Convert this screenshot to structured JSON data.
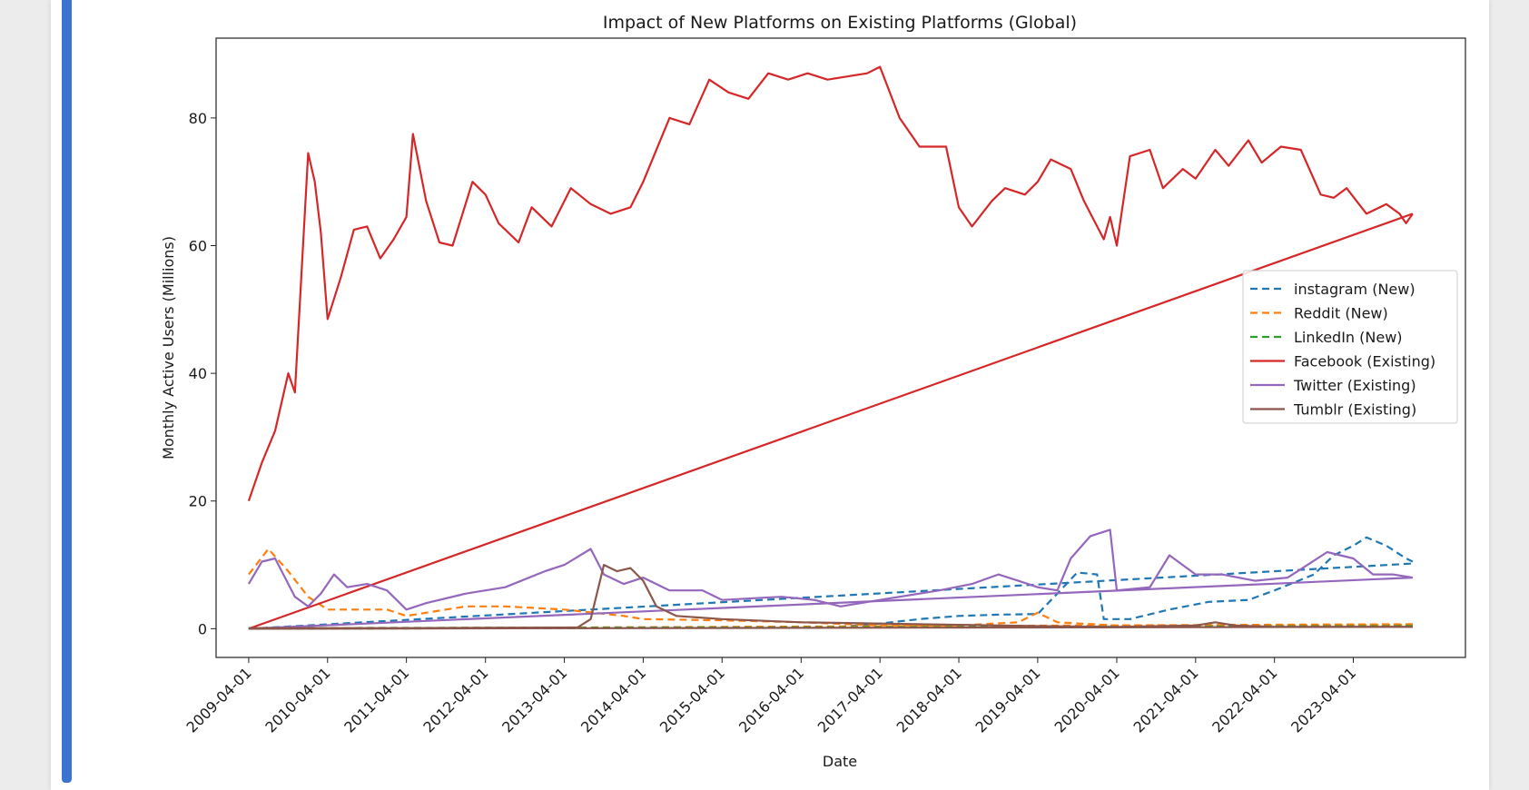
{
  "chart_data": {
    "type": "line",
    "title": "Impact of New Platforms on Existing Platforms (Global)",
    "xlabel": "Date",
    "ylabel": "Monthly Active Users (Millions)",
    "xlim": [
      "2008-11-01",
      "2024-09-01"
    ],
    "ylim": [
      -4.5,
      92.5
    ],
    "yticks": [
      0,
      20,
      40,
      60,
      80
    ],
    "xticks": [
      "2009-04-01",
      "2010-04-01",
      "2011-04-01",
      "2012-04-01",
      "2013-04-01",
      "2014-04-01",
      "2015-04-01",
      "2016-04-01",
      "2017-04-01",
      "2018-04-01",
      "2019-04-01",
      "2020-04-01",
      "2021-04-01",
      "2022-04-01",
      "2023-04-01"
    ],
    "grid": false,
    "legend_position": "center-right",
    "series": [
      {
        "name": "instagram (New)",
        "color": "#1f77b4",
        "dash": "dashed",
        "data": [
          [
            "2009-04-01",
            0.1
          ],
          [
            "2011-04-01",
            0.1
          ],
          [
            "2013-04-01",
            0.1
          ],
          [
            "2015-04-01",
            0.2
          ],
          [
            "2016-10-01",
            0.3
          ],
          [
            "2017-04-01",
            0.8
          ],
          [
            "2017-10-01",
            1.5
          ],
          [
            "2018-04-01",
            2.0
          ],
          [
            "2018-10-01",
            2.2
          ],
          [
            "2019-04-01",
            2.3
          ],
          [
            "2019-07-01",
            5.5
          ],
          [
            "2019-10-01",
            8.8
          ],
          [
            "2020-01-01",
            8.5
          ],
          [
            "2020-02-01",
            1.5
          ],
          [
            "2020-06-01",
            1.5
          ],
          [
            "2020-12-01",
            3.0
          ],
          [
            "2021-06-01",
            4.2
          ],
          [
            "2021-12-01",
            4.5
          ],
          [
            "2022-04-01",
            6.0
          ],
          [
            "2022-10-01",
            8.5
          ],
          [
            "2023-01-01",
            11.5
          ],
          [
            "2023-04-01",
            13.0
          ],
          [
            "2023-06-01",
            14.3
          ],
          [
            "2023-09-01",
            13.0
          ],
          [
            "2023-12-01",
            11.0
          ],
          [
            "2024-01-01",
            10.5
          ]
        ],
        "trend": [
          [
            "2009-04-01",
            0.0
          ],
          [
            "2024-01-01",
            10.2
          ]
        ]
      },
      {
        "name": "Reddit (New)",
        "color": "#ff7f0e",
        "dash": "dashed",
        "data": [
          [
            "2009-04-01",
            8.5
          ],
          [
            "2009-07-01",
            12.5
          ],
          [
            "2009-10-01",
            9.0
          ],
          [
            "2010-01-01",
            5.0
          ],
          [
            "2010-04-01",
            3.0
          ],
          [
            "2011-01-01",
            3.0
          ],
          [
            "2011-04-01",
            2.0
          ],
          [
            "2012-01-01",
            3.5
          ],
          [
            "2012-07-01",
            3.5
          ],
          [
            "2013-04-01",
            3.0
          ],
          [
            "2014-01-01",
            2.0
          ],
          [
            "2014-04-01",
            1.5
          ],
          [
            "2015-04-01",
            1.3
          ],
          [
            "2016-04-01",
            1.0
          ],
          [
            "2017-04-01",
            0.5
          ],
          [
            "2018-04-01",
            0.5
          ],
          [
            "2019-01-01",
            1.0
          ],
          [
            "2019-04-01",
            2.5
          ],
          [
            "2019-07-01",
            1.0
          ],
          [
            "2020-04-01",
            0.5
          ],
          [
            "2022-04-01",
            0.5
          ],
          [
            "2024-01-01",
            0.6
          ]
        ],
        "trend": [
          [
            "2009-04-01",
            0.0
          ],
          [
            "2024-01-01",
            0.7
          ]
        ]
      },
      {
        "name": "LinkedIn (New)",
        "color": "#2ca02c",
        "dash": "dashed",
        "data": [
          [
            "2009-04-01",
            0.1
          ],
          [
            "2015-04-01",
            0.2
          ],
          [
            "2020-04-01",
            0.3
          ],
          [
            "2024-01-01",
            0.4
          ]
        ],
        "trend": [
          [
            "2009-04-01",
            0.0
          ],
          [
            "2024-01-01",
            0.4
          ]
        ]
      },
      {
        "name": "Facebook (Existing)",
        "color": "#d62728",
        "dash": "solid",
        "data": [
          [
            "2009-04-01",
            20.0
          ],
          [
            "2009-06-01",
            26.0
          ],
          [
            "2009-08-01",
            31.0
          ],
          [
            "2009-10-01",
            40.0
          ],
          [
            "2009-11-01",
            37.0
          ],
          [
            "2010-01-01",
            74.5
          ],
          [
            "2010-02-01",
            70.0
          ],
          [
            "2010-03-01",
            62.0
          ],
          [
            "2010-04-01",
            48.5
          ],
          [
            "2010-06-01",
            55.0
          ],
          [
            "2010-08-01",
            62.5
          ],
          [
            "2010-10-01",
            63.0
          ],
          [
            "2010-12-01",
            58.0
          ],
          [
            "2011-02-01",
            61.0
          ],
          [
            "2011-04-01",
            64.5
          ],
          [
            "2011-05-01",
            77.5
          ],
          [
            "2011-07-01",
            67.0
          ],
          [
            "2011-09-01",
            60.5
          ],
          [
            "2011-11-01",
            60.0
          ],
          [
            "2012-02-01",
            70.0
          ],
          [
            "2012-04-01",
            68.0
          ],
          [
            "2012-06-01",
            63.5
          ],
          [
            "2012-09-01",
            60.5
          ],
          [
            "2012-11-01",
            66.0
          ],
          [
            "2013-02-01",
            63.0
          ],
          [
            "2013-05-01",
            69.0
          ],
          [
            "2013-08-01",
            66.5
          ],
          [
            "2013-11-01",
            65.0
          ],
          [
            "2014-02-01",
            66.0
          ],
          [
            "2014-04-01",
            70.0
          ],
          [
            "2014-08-01",
            80.0
          ],
          [
            "2014-11-01",
            79.0
          ],
          [
            "2015-02-01",
            86.0
          ],
          [
            "2015-05-01",
            84.0
          ],
          [
            "2015-08-01",
            83.0
          ],
          [
            "2015-11-01",
            87.0
          ],
          [
            "2016-02-01",
            86.0
          ],
          [
            "2016-05-01",
            87.0
          ],
          [
            "2016-08-01",
            86.0
          ],
          [
            "2016-11-01",
            86.5
          ],
          [
            "2017-02-01",
            87.0
          ],
          [
            "2017-04-01",
            88.0
          ],
          [
            "2017-07-01",
            80.0
          ],
          [
            "2017-10-01",
            75.5
          ],
          [
            "2018-02-01",
            75.5
          ],
          [
            "2018-04-01",
            66.0
          ],
          [
            "2018-06-01",
            63.0
          ],
          [
            "2018-09-01",
            67.0
          ],
          [
            "2018-11-01",
            69.0
          ],
          [
            "2019-02-01",
            68.0
          ],
          [
            "2019-04-01",
            70.0
          ],
          [
            "2019-06-01",
            73.5
          ],
          [
            "2019-09-01",
            72.0
          ],
          [
            "2019-11-01",
            67.0
          ],
          [
            "2020-02-01",
            61.0
          ],
          [
            "2020-03-01",
            64.5
          ],
          [
            "2020-04-01",
            60.0
          ],
          [
            "2020-06-01",
            74.0
          ],
          [
            "2020-09-01",
            75.0
          ],
          [
            "2020-11-01",
            69.0
          ],
          [
            "2021-02-01",
            72.0
          ],
          [
            "2021-04-01",
            70.5
          ],
          [
            "2021-07-01",
            75.0
          ],
          [
            "2021-09-01",
            72.5
          ],
          [
            "2021-12-01",
            76.5
          ],
          [
            "2022-02-01",
            73.0
          ],
          [
            "2022-05-01",
            75.5
          ],
          [
            "2022-08-01",
            75.0
          ],
          [
            "2022-11-01",
            68.0
          ],
          [
            "2023-01-01",
            67.5
          ],
          [
            "2023-03-01",
            69.0
          ],
          [
            "2023-06-01",
            65.0
          ],
          [
            "2023-09-01",
            66.5
          ],
          [
            "2023-11-01",
            65.0
          ],
          [
            "2023-12-01",
            63.5
          ],
          [
            "2024-01-01",
            65.0
          ]
        ],
        "trend": [
          [
            "2009-04-01",
            0.0
          ],
          [
            "2024-01-01",
            65.0
          ]
        ]
      },
      {
        "name": "Twitter (Existing)",
        "color": "#9467bd",
        "dash": "solid",
        "data": [
          [
            "2009-04-01",
            7.0
          ],
          [
            "2009-06-01",
            10.5
          ],
          [
            "2009-08-01",
            11.0
          ],
          [
            "2009-11-01",
            5.0
          ],
          [
            "2010-01-01",
            3.5
          ],
          [
            "2010-03-01",
            5.5
          ],
          [
            "2010-05-01",
            8.5
          ],
          [
            "2010-07-01",
            6.5
          ],
          [
            "2010-10-01",
            7.0
          ],
          [
            "2011-01-01",
            6.0
          ],
          [
            "2011-04-01",
            3.0
          ],
          [
            "2011-07-01",
            4.0
          ],
          [
            "2012-01-01",
            5.5
          ],
          [
            "2012-07-01",
            6.5
          ],
          [
            "2013-01-01",
            9.0
          ],
          [
            "2013-04-01",
            10.0
          ],
          [
            "2013-08-01",
            12.5
          ],
          [
            "2013-10-01",
            8.5
          ],
          [
            "2014-01-01",
            7.0
          ],
          [
            "2014-04-01",
            8.0
          ],
          [
            "2014-08-01",
            6.0
          ],
          [
            "2015-01-01",
            6.0
          ],
          [
            "2015-04-01",
            4.5
          ],
          [
            "2016-01-01",
            5.0
          ],
          [
            "2016-06-01",
            4.5
          ],
          [
            "2016-10-01",
            3.5
          ],
          [
            "2017-04-01",
            4.5
          ],
          [
            "2018-01-01",
            6.0
          ],
          [
            "2018-06-01",
            7.0
          ],
          [
            "2018-10-01",
            8.5
          ],
          [
            "2019-01-01",
            7.5
          ],
          [
            "2019-04-01",
            6.5
          ],
          [
            "2019-07-01",
            6.0
          ],
          [
            "2019-09-01",
            11.0
          ],
          [
            "2019-12-01",
            14.5
          ],
          [
            "2020-03-01",
            15.5
          ],
          [
            "2020-04-01",
            6.0
          ],
          [
            "2020-09-01",
            6.5
          ],
          [
            "2020-12-01",
            11.5
          ],
          [
            "2021-04-01",
            8.5
          ],
          [
            "2021-08-01",
            8.5
          ],
          [
            "2022-01-01",
            7.5
          ],
          [
            "2022-06-01",
            8.0
          ],
          [
            "2022-09-01",
            10.0
          ],
          [
            "2022-12-01",
            12.0
          ],
          [
            "2023-04-01",
            11.0
          ],
          [
            "2023-07-01",
            8.5
          ],
          [
            "2023-10-01",
            8.5
          ],
          [
            "2024-01-01",
            8.0
          ]
        ],
        "trend": [
          [
            "2009-04-01",
            0.0
          ],
          [
            "2024-01-01",
            8.0
          ]
        ]
      },
      {
        "name": "Tumblr (Existing)",
        "color": "#8c564b",
        "dash": "solid",
        "data": [
          [
            "2009-04-01",
            0.1
          ],
          [
            "2011-04-01",
            0.1
          ],
          [
            "2013-06-01",
            0.2
          ],
          [
            "2013-08-01",
            1.5
          ],
          [
            "2013-10-01",
            10.0
          ],
          [
            "2013-12-01",
            9.0
          ],
          [
            "2014-02-01",
            9.5
          ],
          [
            "2014-04-01",
            7.5
          ],
          [
            "2014-06-01",
            3.5
          ],
          [
            "2014-09-01",
            2.0
          ],
          [
            "2015-04-01",
            1.5
          ],
          [
            "2016-04-01",
            1.0
          ],
          [
            "2017-04-01",
            0.8
          ],
          [
            "2018-04-01",
            0.6
          ],
          [
            "2019-04-01",
            0.4
          ],
          [
            "2020-04-01",
            0.3
          ],
          [
            "2021-04-01",
            0.5
          ],
          [
            "2021-07-01",
            1.0
          ],
          [
            "2021-10-01",
            0.5
          ],
          [
            "2022-04-01",
            0.3
          ],
          [
            "2024-01-01",
            0.3
          ]
        ],
        "trend": [
          [
            "2009-04-01",
            0.0
          ],
          [
            "2024-01-01",
            0.3
          ]
        ]
      }
    ]
  }
}
